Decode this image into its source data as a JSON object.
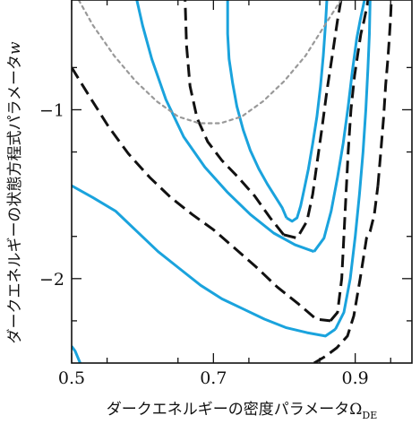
{
  "chart_data": {
    "type": "line",
    "xlabel": "ダークエネルギーの密度パラメータ",
    "xlabel_symbol": "Ω",
    "xlabel_subscript": "DE",
    "ylabel": "ダークエネルギーの状態方程式パラメータ",
    "ylabel_symbol": "w",
    "xlim": [
      0.5,
      0.98
    ],
    "ylim": [
      -2.5,
      -0.35
    ],
    "x_ticks": [
      {
        "value": 0.5,
        "label": "0.5"
      },
      {
        "value": 0.7,
        "label": "0.7"
      },
      {
        "value": 0.9,
        "label": "0.9"
      }
    ],
    "y_ticks": [
      {
        "value": -1,
        "label": "−1"
      },
      {
        "value": -2,
        "label": "−2"
      }
    ],
    "grid": false,
    "colors": {
      "blue": "#1aa3dd",
      "black": "#111111",
      "gray": "#999999"
    },
    "series": [
      {
        "style": "blue-solid",
        "x": [
          0.803,
          0.801,
          0.797,
          0.788,
          0.776,
          0.764,
          0.752,
          0.742,
          0.733,
          0.727,
          0.722,
          0.72,
          0.72
        ],
        "y": [
          -1.64,
          -1.62,
          -1.58,
          -1.52,
          -1.44,
          -1.35,
          -1.24,
          -1.12,
          -0.98,
          -0.84,
          -0.7,
          -0.55,
          -0.35
        ]
      },
      {
        "style": "blue-solid",
        "x": [
          0.803,
          0.811,
          0.818,
          0.823,
          0.828,
          0.834,
          0.84,
          0.846,
          0.851,
          0.855,
          0.858,
          0.86
        ],
        "y": [
          -1.64,
          -1.66,
          -1.64,
          -1.57,
          -1.47,
          -1.35,
          -1.2,
          -1.04,
          -0.86,
          -0.68,
          -0.5,
          -0.35
        ]
      },
      {
        "style": "black-dash",
        "x": [
          0.799,
          0.78,
          0.758,
          0.735,
          0.712,
          0.692,
          0.677,
          0.667,
          0.662,
          0.66
        ],
        "y": [
          -1.74,
          -1.64,
          -1.51,
          -1.4,
          -1.3,
          -1.19,
          -1.05,
          -0.86,
          -0.62,
          -0.35
        ]
      },
      {
        "style": "black-dash",
        "x": [
          0.799,
          0.818,
          0.832,
          0.84,
          0.846,
          0.853,
          0.86,
          0.868,
          0.875,
          0.88
        ],
        "y": [
          -1.74,
          -1.76,
          -1.66,
          -1.5,
          -1.32,
          -1.11,
          -0.89,
          -0.67,
          -0.47,
          -0.35
        ]
      },
      {
        "style": "blue-solid",
        "x": [
          0.842,
          0.815,
          0.785,
          0.752,
          0.72,
          0.688,
          0.658,
          0.633,
          0.613,
          0.6,
          0.592
        ],
        "y": [
          -1.84,
          -1.8,
          -1.73,
          -1.62,
          -1.49,
          -1.34,
          -1.16,
          -0.94,
          -0.7,
          -0.5,
          -0.35
        ]
      },
      {
        "style": "blue-solid",
        "x": [
          0.842,
          0.856,
          0.866,
          0.875,
          0.883,
          0.89,
          0.896,
          0.902,
          0.907,
          0.911,
          0.913
        ],
        "y": [
          -1.84,
          -1.76,
          -1.6,
          -1.4,
          -1.2,
          -0.98,
          -0.77,
          -0.58,
          -0.47,
          -0.39,
          -0.35
        ]
      },
      {
        "style": "black-dash",
        "x": [
          0.5,
          0.525,
          0.552,
          0.58,
          0.61,
          0.64,
          0.67,
          0.7,
          0.73,
          0.76,
          0.79,
          0.82,
          0.845,
          0.865
        ],
        "y": [
          -0.75,
          -0.92,
          -1.1,
          -1.26,
          -1.4,
          -1.52,
          -1.62,
          -1.71,
          -1.82,
          -1.93,
          -2.05,
          -2.15,
          -2.24,
          -2.25
        ]
      },
      {
        "style": "black-dash",
        "x": [
          0.865,
          0.875,
          0.881,
          0.884,
          0.887,
          0.89,
          0.894,
          0.899,
          0.904,
          0.908,
          0.912,
          0.915,
          0.917,
          0.918
        ],
        "y": [
          -2.25,
          -2.2,
          -2.0,
          -1.75,
          -1.5,
          -1.25,
          -1.0,
          -0.8,
          -0.66,
          -0.55,
          -0.48,
          -0.42,
          -0.38,
          -0.35
        ]
      },
      {
        "style": "blue-solid",
        "x": [
          0.5,
          0.53,
          0.562,
          0.592,
          0.622,
          0.652,
          0.682,
          0.712,
          0.742,
          0.772,
          0.802,
          0.832,
          0.858,
          0.872
        ],
        "y": [
          -1.45,
          -1.52,
          -1.6,
          -1.72,
          -1.84,
          -1.94,
          -2.04,
          -2.12,
          -2.18,
          -2.24,
          -2.29,
          -2.32,
          -2.34,
          -2.3
        ]
      },
      {
        "style": "blue-solid",
        "x": [
          0.872,
          0.884,
          0.893,
          0.9,
          0.906,
          0.911,
          0.915,
          0.918,
          0.92,
          0.921
        ],
        "y": [
          -2.3,
          -2.2,
          -2.0,
          -1.75,
          -1.5,
          -1.25,
          -1.0,
          -0.75,
          -0.55,
          -0.35
        ]
      },
      {
        "style": "black-dash",
        "x": [
          0.842,
          0.858,
          0.874,
          0.889,
          0.898,
          0.907,
          0.916,
          0.921,
          0.927,
          0.932
        ],
        "y": [
          -2.5,
          -2.46,
          -2.41,
          -2.34,
          -2.22,
          -2.0,
          -1.76,
          -1.72,
          -1.62,
          -1.45
        ]
      },
      {
        "style": "black-dash",
        "x": [
          0.932,
          0.936,
          0.94,
          0.943,
          0.946,
          0.948,
          0.95,
          0.951
        ],
        "y": [
          -1.45,
          -1.25,
          -1.05,
          -0.85,
          -0.7,
          -0.58,
          -0.45,
          -0.35
        ]
      },
      {
        "style": "blue-solid",
        "x": [
          0.5,
          0.505,
          0.512
        ],
        "y": [
          -2.4,
          -2.43,
          -2.5
        ]
      },
      {
        "style": "gray-dotted",
        "x": [
          0.51,
          0.53,
          0.56,
          0.59,
          0.62,
          0.65,
          0.68,
          0.71,
          0.74,
          0.77,
          0.8,
          0.83,
          0.86,
          0.88
        ],
        "y": [
          -0.35,
          -0.5,
          -0.68,
          -0.83,
          -0.95,
          -1.04,
          -1.08,
          -1.08,
          -1.04,
          -0.95,
          -0.83,
          -0.68,
          -0.48,
          -0.35
        ]
      }
    ]
  }
}
